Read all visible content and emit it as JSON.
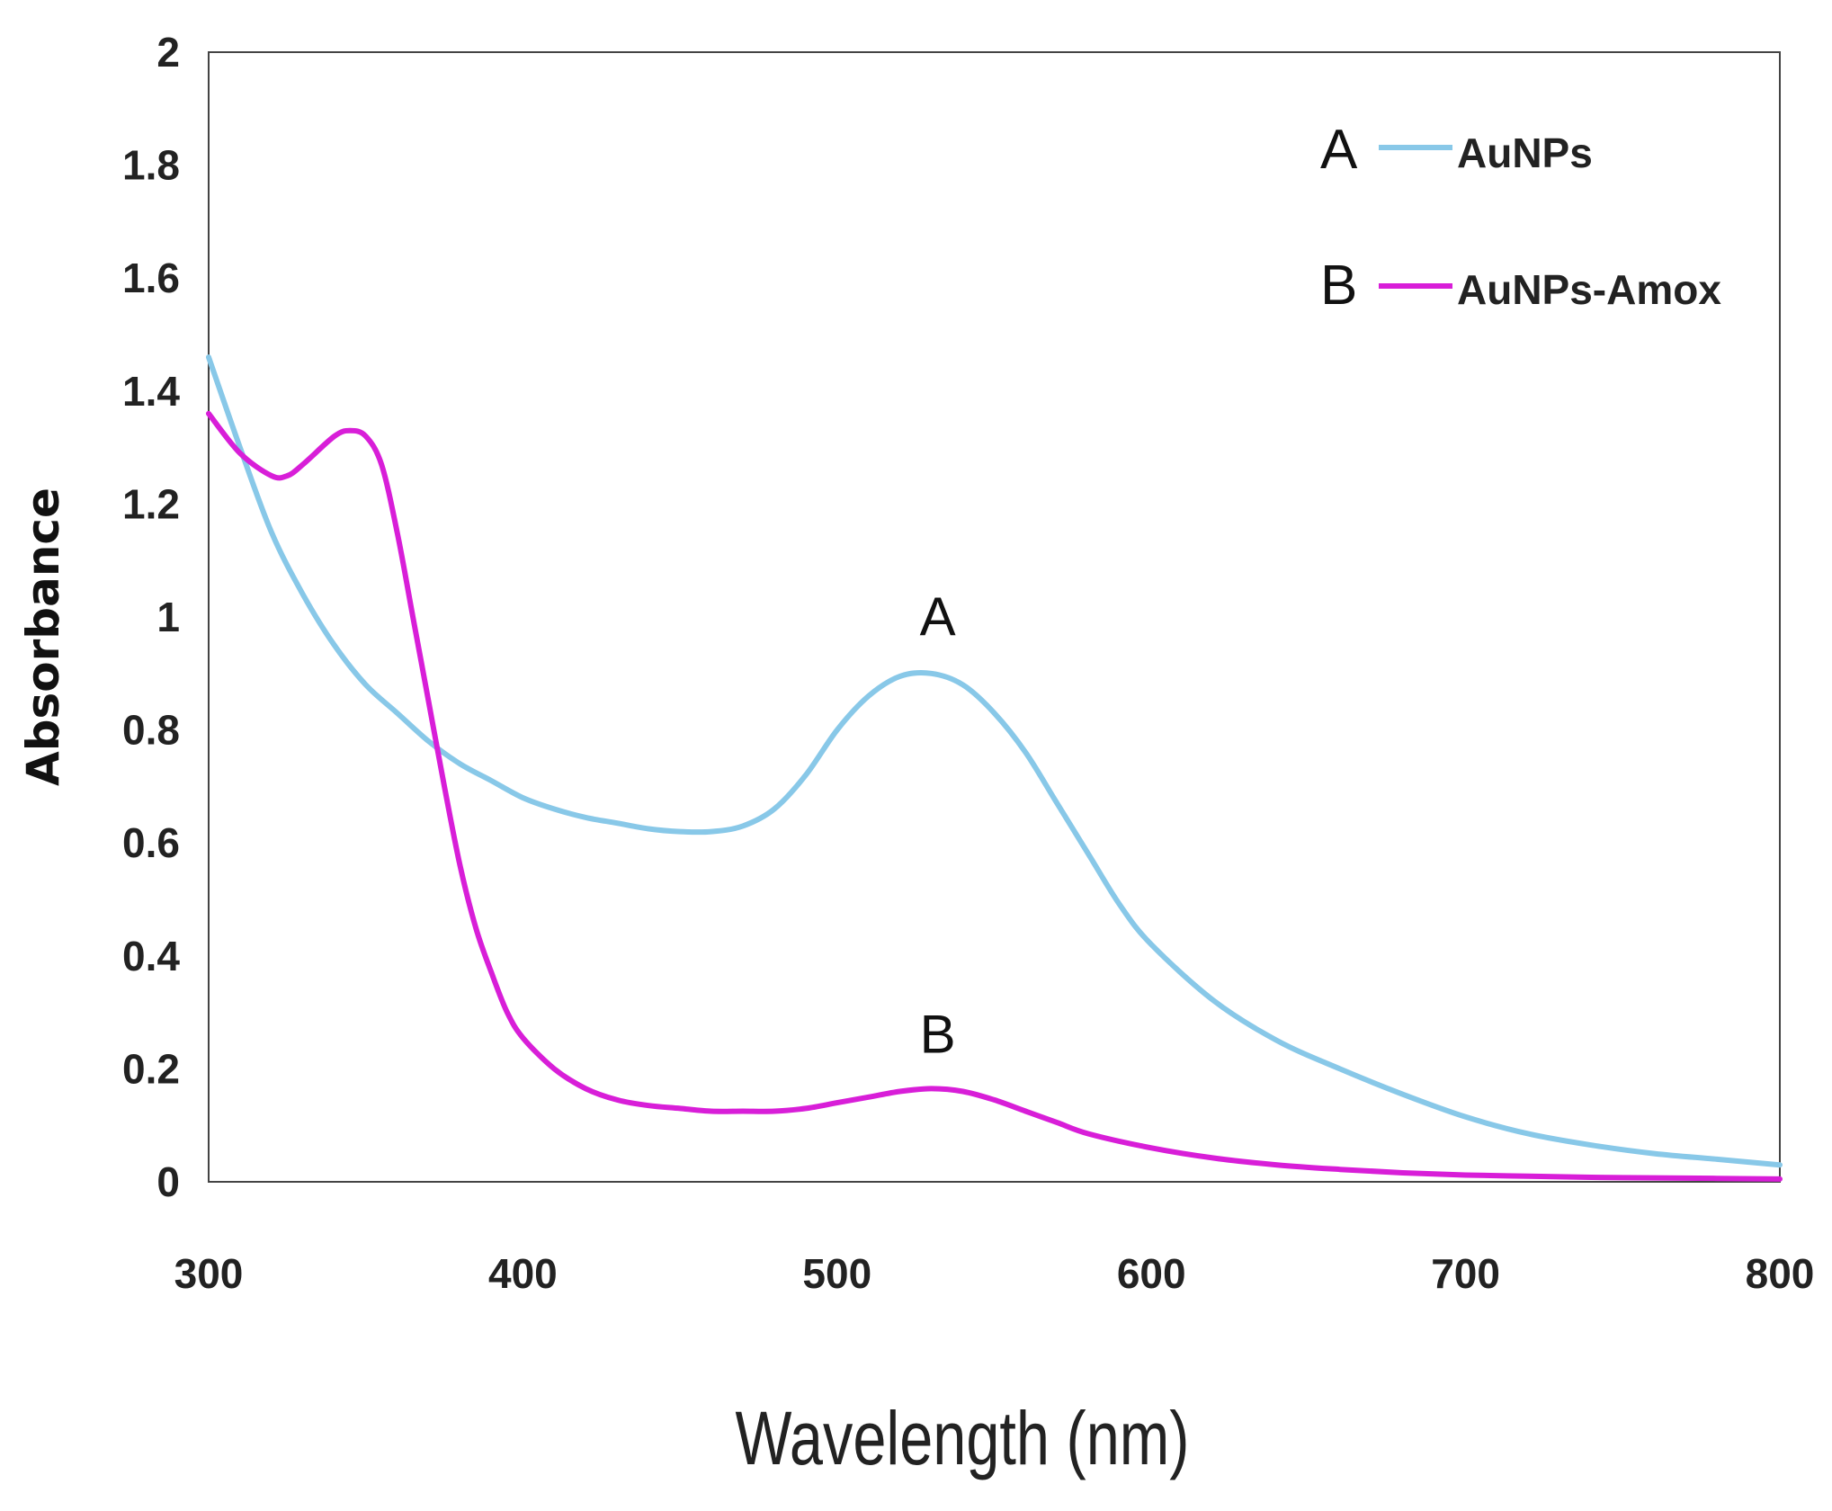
{
  "chart_data": {
    "type": "line",
    "title": "",
    "xlabel": "Wavelength (nm)",
    "ylabel": "Absorbance",
    "xlim": [
      300,
      800
    ],
    "ylim": [
      0,
      2
    ],
    "xticks": [
      "300",
      "400",
      "500",
      "600",
      "700",
      "800"
    ],
    "yticks": [
      "0",
      "0.2",
      "0.4",
      "0.6",
      "0.8",
      "1",
      "1.2",
      "1.4",
      "1.6",
      "1.8",
      "2"
    ],
    "grid": false,
    "legend_position": "top-right",
    "series": [
      {
        "id": "A",
        "name": "AuNPs",
        "color": "#88c8e8",
        "x": [
          300,
          310,
          320,
          330,
          340,
          350,
          360,
          370,
          380,
          390,
          400,
          410,
          420,
          430,
          440,
          450,
          460,
          470,
          480,
          490,
          500,
          510,
          520,
          530,
          540,
          550,
          560,
          570,
          580,
          590,
          600,
          620,
          640,
          660,
          680,
          700,
          720,
          740,
          760,
          780,
          800
        ],
        "y": [
          1.46,
          1.3,
          1.15,
          1.04,
          0.95,
          0.88,
          0.83,
          0.78,
          0.74,
          0.71,
          0.68,
          0.66,
          0.645,
          0.635,
          0.625,
          0.62,
          0.62,
          0.63,
          0.66,
          0.72,
          0.8,
          0.86,
          0.895,
          0.9,
          0.88,
          0.83,
          0.76,
          0.67,
          0.58,
          0.49,
          0.42,
          0.32,
          0.25,
          0.2,
          0.155,
          0.115,
          0.085,
          0.065,
          0.05,
          0.04,
          0.03
        ]
      },
      {
        "id": "B",
        "name": "AuNPs-Amox",
        "color": "#d81ed8",
        "x": [
          300,
          310,
          320,
          325,
          330,
          340,
          345,
          350,
          355,
          360,
          365,
          370,
          375,
          380,
          385,
          390,
          395,
          400,
          410,
          420,
          430,
          440,
          450,
          460,
          470,
          480,
          490,
          500,
          510,
          520,
          530,
          540,
          550,
          560,
          570,
          580,
          600,
          620,
          640,
          660,
          680,
          700,
          720,
          740,
          760,
          780,
          800
        ],
        "y": [
          1.36,
          1.29,
          1.25,
          1.25,
          1.27,
          1.32,
          1.33,
          1.32,
          1.27,
          1.15,
          1.0,
          0.85,
          0.7,
          0.56,
          0.45,
          0.37,
          0.3,
          0.255,
          0.2,
          0.165,
          0.145,
          0.135,
          0.13,
          0.125,
          0.125,
          0.125,
          0.13,
          0.14,
          0.15,
          0.16,
          0.165,
          0.16,
          0.145,
          0.125,
          0.105,
          0.085,
          0.06,
          0.042,
          0.03,
          0.022,
          0.016,
          0.012,
          0.01,
          0.008,
          0.007,
          0.006,
          0.005
        ]
      }
    ],
    "annotations": [
      {
        "text": "A",
        "x": 532,
        "y": 1.0
      },
      {
        "text": "B",
        "x": 532,
        "y": 0.26
      }
    ]
  }
}
